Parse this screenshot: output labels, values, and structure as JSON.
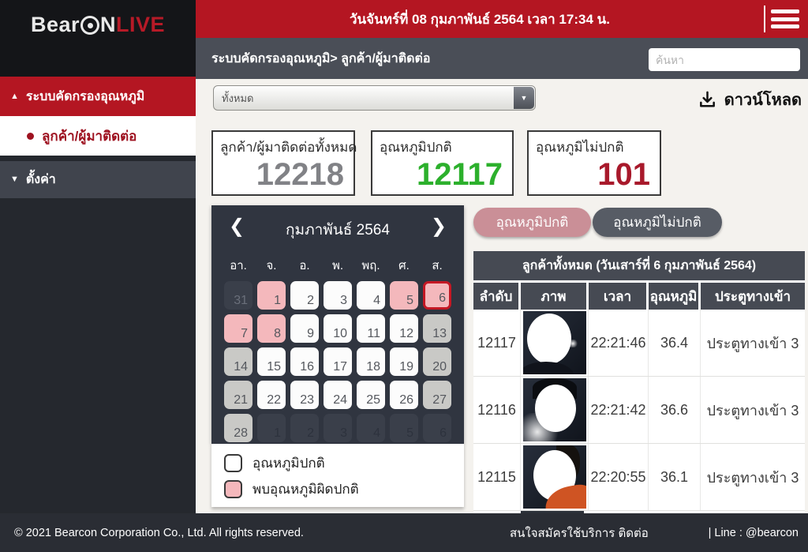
{
  "topbar": {
    "logo": {
      "part1": "Bear",
      "part2": "N",
      "accent": "LIVE"
    },
    "date_text": "วันจันทร์ที่ 08 กุมภาพันธ์ 2564 เวลา 17:34 น."
  },
  "icons": {
    "section_arrow": "▲",
    "settings_arrow": "▼",
    "prev": "❮",
    "next": "❯",
    "select_caret": "▼"
  },
  "breadcrumb": {
    "path": "ระบบคัดกรองอุณหภูมิ> ลูกค้า/ผู้มาติดต่อ",
    "search_placeholder": "ค้นหา"
  },
  "sidebar": {
    "section": {
      "label": "ระบบคัดกรองอุณหภูมิ"
    },
    "active_item": {
      "label": "ลูกค้า/ผู้มาติดต่อ"
    },
    "settings": {
      "label": "ตั้งค่า"
    }
  },
  "toolbar": {
    "filter_selected": "ทั้งหมด",
    "download_label": "ดาวน์โหลด"
  },
  "stats": [
    {
      "label": "ลูกค้า/ผู้มาติดต่อทั้งหมด",
      "value": "12218",
      "color": "#818286"
    },
    {
      "label": "อุณหภูมิปกติ",
      "value": "12117",
      "color": "#2cb02c"
    },
    {
      "label": "อุณหภูมิไม่ปกติ",
      "value": "101",
      "color": "#a8192b"
    }
  ],
  "calendar": {
    "title": "กุมภาพันธ์ 2564",
    "day_headers": [
      "อา.",
      "จ.",
      "อ.",
      "พ.",
      "พฤ.",
      "ศ.",
      "ส."
    ],
    "weeks": [
      [
        {
          "day": "31",
          "type": "out"
        },
        {
          "day": "1",
          "type": "abnormal"
        },
        {
          "day": "2",
          "type": "normal"
        },
        {
          "day": "3",
          "type": "normal"
        },
        {
          "day": "4",
          "type": "normal"
        },
        {
          "day": "5",
          "type": "abnormal"
        },
        {
          "day": "6",
          "type": "selected"
        }
      ],
      [
        {
          "day": "7",
          "type": "abnormal"
        },
        {
          "day": "8",
          "type": "abnormal"
        },
        {
          "day": "9",
          "type": "normal"
        },
        {
          "day": "10",
          "type": "normal"
        },
        {
          "day": "11",
          "type": "normal"
        },
        {
          "day": "12",
          "type": "normal"
        },
        {
          "day": "13",
          "type": "gray"
        }
      ],
      [
        {
          "day": "14",
          "type": "gray"
        },
        {
          "day": "15",
          "type": "normal"
        },
        {
          "day": "16",
          "type": "normal"
        },
        {
          "day": "17",
          "type": "normal"
        },
        {
          "day": "18",
          "type": "normal"
        },
        {
          "day": "19",
          "type": "normal"
        },
        {
          "day": "20",
          "type": "gray"
        }
      ],
      [
        {
          "day": "21",
          "type": "gray"
        },
        {
          "day": "22",
          "type": "normal"
        },
        {
          "day": "23",
          "type": "normal"
        },
        {
          "day": "24",
          "type": "normal"
        },
        {
          "day": "25",
          "type": "normal"
        },
        {
          "day": "26",
          "type": "normal"
        },
        {
          "day": "27",
          "type": "gray"
        }
      ],
      [
        {
          "day": "28",
          "type": "gray"
        },
        {
          "day": "1",
          "type": "out-dim"
        },
        {
          "day": "2",
          "type": "out-dim"
        },
        {
          "day": "3",
          "type": "out-dim"
        },
        {
          "day": "4",
          "type": "out-dim"
        },
        {
          "day": "5",
          "type": "out-dim"
        },
        {
          "day": "6",
          "type": "out-dim"
        }
      ]
    ],
    "legend": [
      {
        "label": "อุณหภูมิปกติ",
        "swatch": "normal"
      },
      {
        "label": "พบอุณหภูมิผิดปกติ",
        "swatch": "abnormal"
      }
    ],
    "colors": {
      "normal_day": "#fcfcfc",
      "abnormal_day": "#f4b8bc",
      "no_data_day": "#c9c9c6",
      "selected_border": "#c41824"
    }
  },
  "tabs": [
    {
      "label": "อุณหภูมิปกติ",
      "active": true
    },
    {
      "label": "อุณหภูมิไม่ปกติ",
      "active": false
    }
  ],
  "table": {
    "caption": "ลูกค้าทั้งหมด (วันเสาร์ที่ 6 กุมภาพันธ์ 2564)",
    "headers": [
      "ลำดับ",
      "ภาพ",
      "เวลา",
      "อุณหภูมิ",
      "ประตูทางเข้า"
    ],
    "rows": [
      {
        "id": "12117",
        "photo": "masked-face-photo",
        "time": "22:21:46",
        "temp": "36.4",
        "gate": "ประตูทางเข้า 3"
      },
      {
        "id": "12116",
        "photo": "masked-face-photo",
        "time": "22:21:42",
        "temp": "36.6",
        "gate": "ประตูทางเข้า 3"
      },
      {
        "id": "12115",
        "photo": "masked-face-photo",
        "time": "22:20:55",
        "temp": "36.1",
        "gate": "ประตูทางเข้า 3"
      }
    ]
  },
  "footer": {
    "copyright": "© 2021 Bearcon Corporation Co., Ltd. All rights reserved.",
    "contact": "สนใจสมัครใช้บริการ ติดต่อ",
    "line": "| Line : @bearcon"
  },
  "colors": {
    "accent_red": "#b41622",
    "topbar_gray": "#4a4e57",
    "calendar_bg": "#303540",
    "footer_bg": "#2a2d34"
  }
}
